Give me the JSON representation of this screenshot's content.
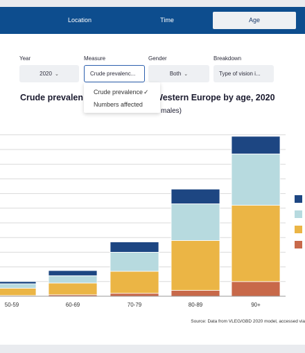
{
  "nav": {
    "tabs": [
      {
        "label": "Location"
      },
      {
        "label": "Time"
      },
      {
        "label": "Age"
      }
    ]
  },
  "filters": {
    "year": {
      "label": "Year",
      "value": "2020"
    },
    "measure": {
      "label": "Measure",
      "value": "Crude prevalenc..."
    },
    "gender": {
      "label": "Gender",
      "value": "Both"
    },
    "breakdown": {
      "label": "Breakdown",
      "value": "Type of vision i..."
    }
  },
  "measure_dropdown": {
    "options": [
      "Crude prevalence",
      "Numbers affected"
    ],
    "selected": "Crude prevalence"
  },
  "chart": {
    "title_left": "Crude prevalen",
    "title_right": "n Western Europe by age, 2020",
    "subtitle": "males)",
    "source": "Source: Data from VLEG/GBD 2020 model, accessed via"
  },
  "chart_data": {
    "type": "bar",
    "stacked": true,
    "categories": [
      "50-59",
      "60-69",
      "70-79",
      "80-89",
      "90+"
    ],
    "series": [
      {
        "color": "#c8694a",
        "values": [
          0.5,
          1,
          2,
          4,
          10
        ]
      },
      {
        "color": "#ebb545",
        "values": [
          5,
          8,
          15,
          34,
          52
        ]
      },
      {
        "color": "#b7dadf",
        "values": [
          3,
          5,
          13,
          25,
          35
        ]
      },
      {
        "color": "#1d4682",
        "values": [
          1.5,
          3.5,
          7,
          10,
          12
        ]
      }
    ],
    "ylim": [
      0,
      110
    ],
    "grid": true,
    "legend_placement": "right"
  }
}
